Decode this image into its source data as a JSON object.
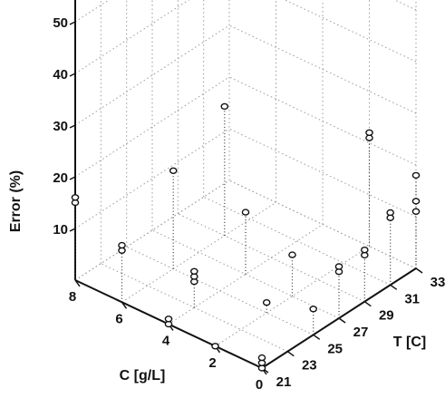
{
  "chart_data": {
    "type": "scatter3d",
    "title": "",
    "axes": {
      "x": {
        "label": "C [g/L]",
        "range": [
          0,
          8
        ],
        "ticks": [
          0,
          2,
          4,
          6,
          8
        ]
      },
      "y": {
        "label": "T [C]",
        "range": [
          21,
          33
        ],
        "ticks": [
          21,
          23,
          25,
          27,
          29,
          31,
          33
        ]
      },
      "z": {
        "label": "Error (%)",
        "range": [
          0,
          55
        ],
        "ticks": [
          10,
          20,
          30,
          40,
          50
        ]
      }
    },
    "grid": true,
    "marker": "open-circle",
    "points": [
      {
        "c": 8,
        "t": 21,
        "e": [
          15,
          16
        ]
      },
      {
        "c": 6,
        "t": 21,
        "e": [
          10,
          11
        ]
      },
      {
        "c": 4,
        "t": 21,
        "e": [
          0,
          1
        ]
      },
      {
        "c": 4,
        "t": 23,
        "e": [
          5,
          6,
          7
        ]
      },
      {
        "c": 2,
        "t": 21,
        "e": [
          0
        ]
      },
      {
        "c": 0,
        "t": 21,
        "e": [
          0,
          1,
          2
        ]
      },
      {
        "c": 6,
        "t": 25,
        "e": [
          19
        ]
      },
      {
        "c": 6,
        "t": 29,
        "e": [
          25
        ]
      },
      {
        "c": 2,
        "t": 25,
        "e": [
          2
        ]
      },
      {
        "c": 2,
        "t": 27,
        "e": [
          8
        ]
      },
      {
        "c": 4,
        "t": 27,
        "e": [
          12
        ]
      },
      {
        "c": 0,
        "t": 25,
        "e": [
          5
        ]
      },
      {
        "c": 0,
        "t": 27,
        "e": [
          9,
          10
        ]
      },
      {
        "c": 0,
        "t": 29,
        "e": [
          9,
          10
        ]
      },
      {
        "c": 2,
        "t": 33,
        "e": [
          21,
          22
        ]
      },
      {
        "c": 0,
        "t": 31,
        "e": [
          13,
          14
        ]
      },
      {
        "c": 0,
        "t": 33,
        "e": [
          18,
          11,
          13
        ]
      }
    ]
  }
}
